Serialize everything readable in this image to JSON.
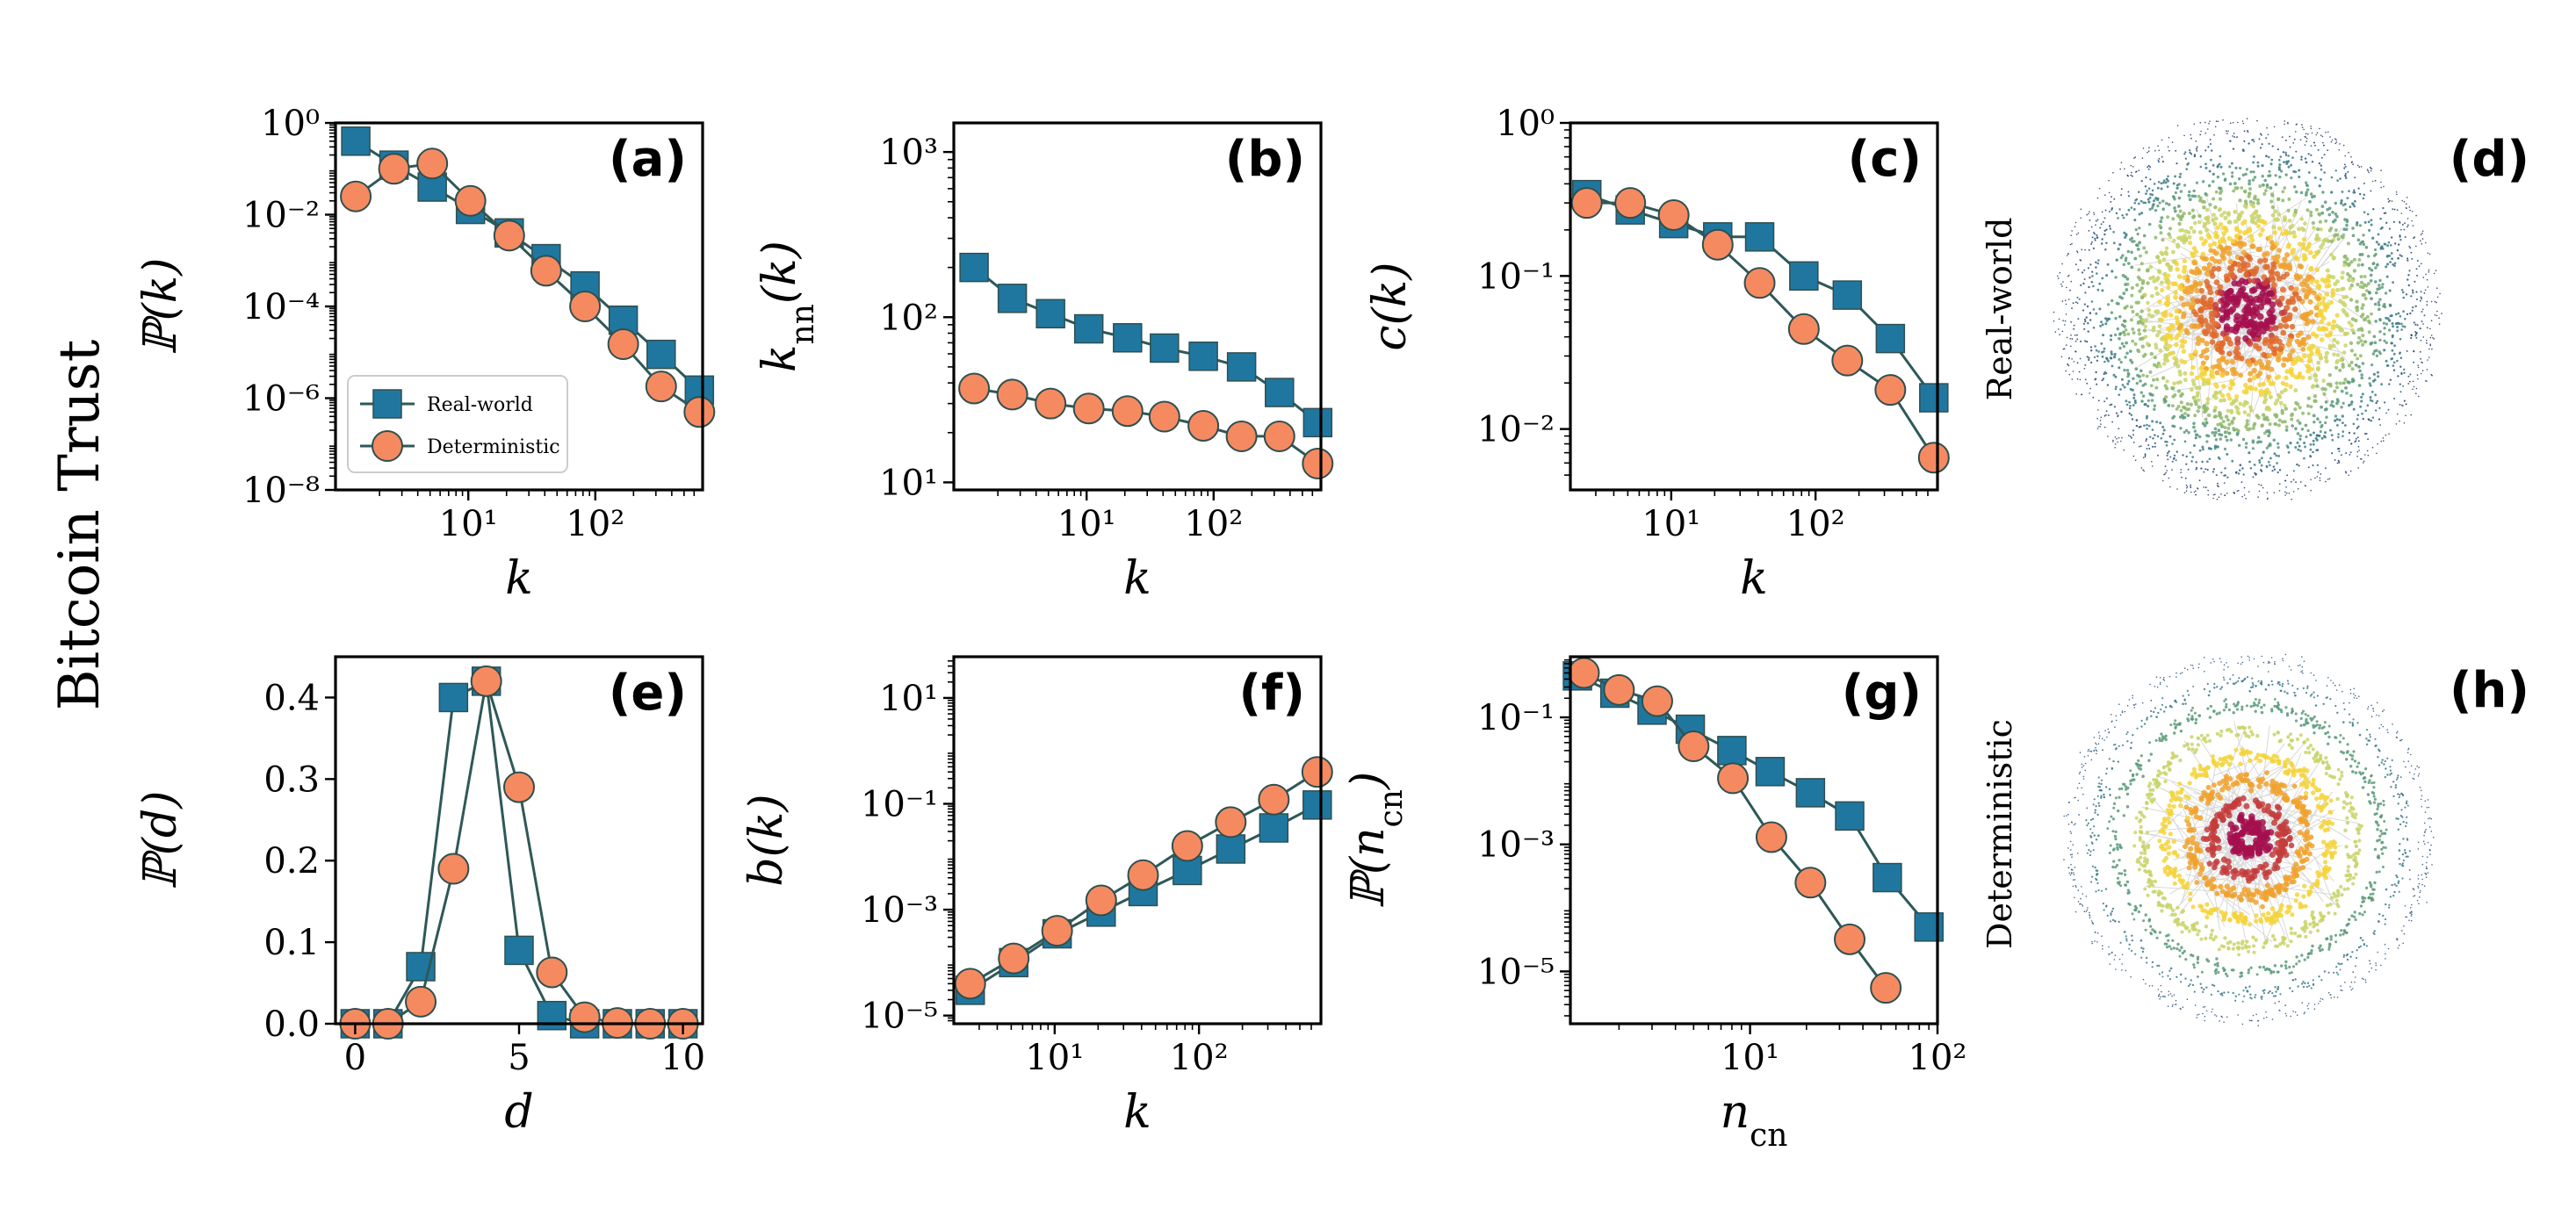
{
  "figure": {
    "row_titles": [
      "Bitcoin Trust"
    ],
    "side_labels": {
      "top": "Real-world",
      "bottom": "Deterministic"
    },
    "panel_labels": {
      "d": "(d)",
      "h": "(h)"
    },
    "colors": {
      "real": "#1f77a0",
      "deterministic": "#f58a61",
      "line": "#2f5858",
      "marker_edge": "#2f4f4f"
    },
    "legend": {
      "real": "Real-world",
      "deterministic": "Deterministic"
    }
  },
  "chart_data": [
    {
      "id": "a",
      "panel_label": "(a)",
      "type": "line",
      "xscale": "log",
      "yscale": "log",
      "xlim": [
        0.9,
        700
      ],
      "ylim": [
        1e-08,
        1
      ],
      "xlabel": "k",
      "ylabel": "ℙ(k)",
      "xticks": [
        {
          "v": 10,
          "label": "10¹"
        },
        {
          "v": 100,
          "label": "10²"
        }
      ],
      "yticks": [
        {
          "v": 1,
          "label": "10⁰"
        },
        {
          "v": 0.01,
          "label": "10⁻²"
        },
        {
          "v": 0.0001,
          "label": "10⁻⁴"
        },
        {
          "v": 1e-06,
          "label": "10⁻⁶"
        },
        {
          "v": 1e-08,
          "label": "10⁻⁸"
        }
      ],
      "legend": true,
      "series": [
        {
          "name": "Real-world",
          "marker": "square",
          "x": [
            1.3,
            2.6,
            5.2,
            10.4,
            21,
            41,
            83,
            166,
            330,
            660
          ],
          "y": [
            0.4,
            0.12,
            0.04,
            0.013,
            0.004,
            0.0011,
            0.00028,
            5e-05,
            9e-06,
            1.5e-06
          ]
        },
        {
          "name": "Deterministic",
          "marker": "circle",
          "x": [
            1.3,
            2.6,
            5.2,
            10.4,
            21,
            41,
            83,
            166,
            330,
            660
          ],
          "y": [
            0.025,
            0.1,
            0.13,
            0.02,
            0.0035,
            0.0006,
            0.0001,
            1.5e-05,
            1.8e-06,
            5e-07
          ]
        }
      ]
    },
    {
      "id": "b",
      "panel_label": "(b)",
      "type": "line",
      "xscale": "log",
      "yscale": "log",
      "xlim": [
        0.9,
        700
      ],
      "ylim": [
        9,
        1500
      ],
      "xlabel": "k",
      "ylabel": "k_nn(k)",
      "xticks": [
        {
          "v": 10,
          "label": "10¹"
        },
        {
          "v": 100,
          "label": "10²"
        }
      ],
      "yticks": [
        {
          "v": 10,
          "label": "10¹"
        },
        {
          "v": 100,
          "label": "10²"
        },
        {
          "v": 1000,
          "label": "10³"
        }
      ],
      "series": [
        {
          "name": "Real-world",
          "marker": "square",
          "x": [
            1.3,
            2.6,
            5.2,
            10.4,
            21,
            41,
            83,
            166,
            330,
            660
          ],
          "y": [
            200,
            130,
            105,
            85,
            75,
            65,
            58,
            50,
            35,
            23
          ]
        },
        {
          "name": "Deterministic",
          "marker": "circle",
          "x": [
            1.3,
            2.6,
            5.2,
            10.4,
            21,
            41,
            83,
            166,
            330,
            660
          ],
          "y": [
            37,
            34,
            30,
            28,
            27,
            25,
            22,
            19,
            19,
            13
          ]
        }
      ]
    },
    {
      "id": "c",
      "panel_label": "(c)",
      "type": "line",
      "xscale": "log",
      "yscale": "log",
      "xlim": [
        2,
        700
      ],
      "ylim": [
        0.004,
        1
      ],
      "xlabel": "k",
      "ylabel": "c(k)",
      "xticks": [
        {
          "v": 10,
          "label": "10¹"
        },
        {
          "v": 100,
          "label": "10²"
        }
      ],
      "yticks": [
        {
          "v": 1,
          "label": "10⁰"
        },
        {
          "v": 0.1,
          "label": "10⁻¹"
        },
        {
          "v": 0.01,
          "label": "10⁻²"
        }
      ],
      "series": [
        {
          "name": "Real-world",
          "marker": "square",
          "x": [
            2.6,
            5.2,
            10.4,
            21,
            41,
            83,
            166,
            330,
            660
          ],
          "y": [
            0.34,
            0.27,
            0.22,
            0.18,
            0.18,
            0.1,
            0.075,
            0.039,
            0.016
          ]
        },
        {
          "name": "Deterministic",
          "marker": "circle",
          "x": [
            2.6,
            5.2,
            10.4,
            21,
            41,
            83,
            166,
            330,
            660
          ],
          "y": [
            0.3,
            0.3,
            0.25,
            0.16,
            0.09,
            0.045,
            0.028,
            0.018,
            0.0065
          ]
        }
      ]
    },
    {
      "id": "e",
      "panel_label": "(e)",
      "type": "line",
      "xscale": "linear",
      "yscale": "linear",
      "xlim": [
        -0.6,
        10.6
      ],
      "ylim": [
        0,
        0.45
      ],
      "xlabel": "d",
      "ylabel": "ℙ(d)",
      "xticks": [
        {
          "v": 0,
          "label": "0"
        },
        {
          "v": 5,
          "label": "5"
        },
        {
          "v": 10,
          "label": "10"
        }
      ],
      "yticks": [
        {
          "v": 0,
          "label": "0.0"
        },
        {
          "v": 0.1,
          "label": "0.1"
        },
        {
          "v": 0.2,
          "label": "0.2"
        },
        {
          "v": 0.3,
          "label": "0.3"
        },
        {
          "v": 0.4,
          "label": "0.4"
        }
      ],
      "series": [
        {
          "name": "Real-world",
          "marker": "square",
          "x": [
            0,
            1,
            2,
            3,
            4,
            5,
            6,
            7,
            8,
            9,
            10
          ],
          "y": [
            0,
            0,
            0.07,
            0.4,
            0.42,
            0.09,
            0.01,
            0,
            0,
            0,
            0
          ]
        },
        {
          "name": "Deterministic",
          "marker": "circle",
          "x": [
            0,
            1,
            2,
            3,
            4,
            5,
            6,
            7,
            8,
            9,
            10
          ],
          "y": [
            0,
            0,
            0.027,
            0.19,
            0.42,
            0.29,
            0.063,
            0.008,
            0.001,
            0,
            0
          ]
        }
      ]
    },
    {
      "id": "f",
      "panel_label": "(f)",
      "type": "line",
      "xscale": "log",
      "yscale": "log",
      "xlim": [
        2,
        700
      ],
      "ylim": 1e-05,
      "ylim_range": [
        7e-06,
        60
      ],
      "xlabel": "k",
      "ylabel": "b(k)",
      "xticks": [
        {
          "v": 10,
          "label": "10¹"
        },
        {
          "v": 100,
          "label": "10²"
        }
      ],
      "yticks": [
        {
          "v": 10,
          "label": "10¹"
        },
        {
          "v": 0.1,
          "label": "10⁻¹"
        },
        {
          "v": 0.001,
          "label": "10⁻³"
        },
        {
          "v": 1e-05,
          "label": "10⁻⁵"
        }
      ],
      "series": [
        {
          "name": "Real-world",
          "marker": "square",
          "x": [
            2.6,
            5.2,
            10.4,
            21,
            41,
            83,
            166,
            330,
            660
          ],
          "y": [
            3e-05,
            0.0001,
            0.00035,
            0.0009,
            0.0022,
            0.0055,
            0.014,
            0.035,
            0.095
          ]
        },
        {
          "name": "Deterministic",
          "marker": "circle",
          "x": [
            2.6,
            5.2,
            10.4,
            21,
            41,
            83,
            166,
            330,
            660
          ],
          "y": [
            4e-05,
            0.00012,
            0.0004,
            0.0015,
            0.0045,
            0.016,
            0.045,
            0.12,
            0.4
          ]
        }
      ]
    },
    {
      "id": "g",
      "panel_label": "(g)",
      "type": "line",
      "xscale": "log",
      "yscale": "log",
      "xlim": [
        1.1,
        100
      ],
      "ylim_range": [
        1.5e-06,
        0.9
      ],
      "xlabel": "n_cn",
      "ylabel": "ℙ(n_cn)",
      "xticks": [
        {
          "v": 10,
          "label": "10¹"
        },
        {
          "v": 100,
          "label": "10²"
        }
      ],
      "yticks": [
        {
          "v": 0.1,
          "label": "10⁻¹"
        },
        {
          "v": 0.001,
          "label": "10⁻³"
        },
        {
          "v": 1e-05,
          "label": "10⁻⁵"
        }
      ],
      "series": [
        {
          "name": "Real-world",
          "marker": "square",
          "x": [
            1.2,
            1.9,
            3,
            4.8,
            8,
            12.8,
            21,
            34,
            54,
            90
          ],
          "y": [
            0.45,
            0.24,
            0.13,
            0.065,
            0.03,
            0.014,
            0.0065,
            0.0028,
            0.0003,
            5e-05
          ]
        },
        {
          "name": "Deterministic",
          "marker": "circle",
          "x": [
            1.3,
            2,
            3.2,
            5,
            8.1,
            13,
            21,
            34,
            53
          ],
          "y": [
            0.5,
            0.27,
            0.18,
            0.035,
            0.011,
            0.0013,
            0.00025,
            3.2e-05,
            5.5e-06
          ]
        }
      ]
    }
  ]
}
